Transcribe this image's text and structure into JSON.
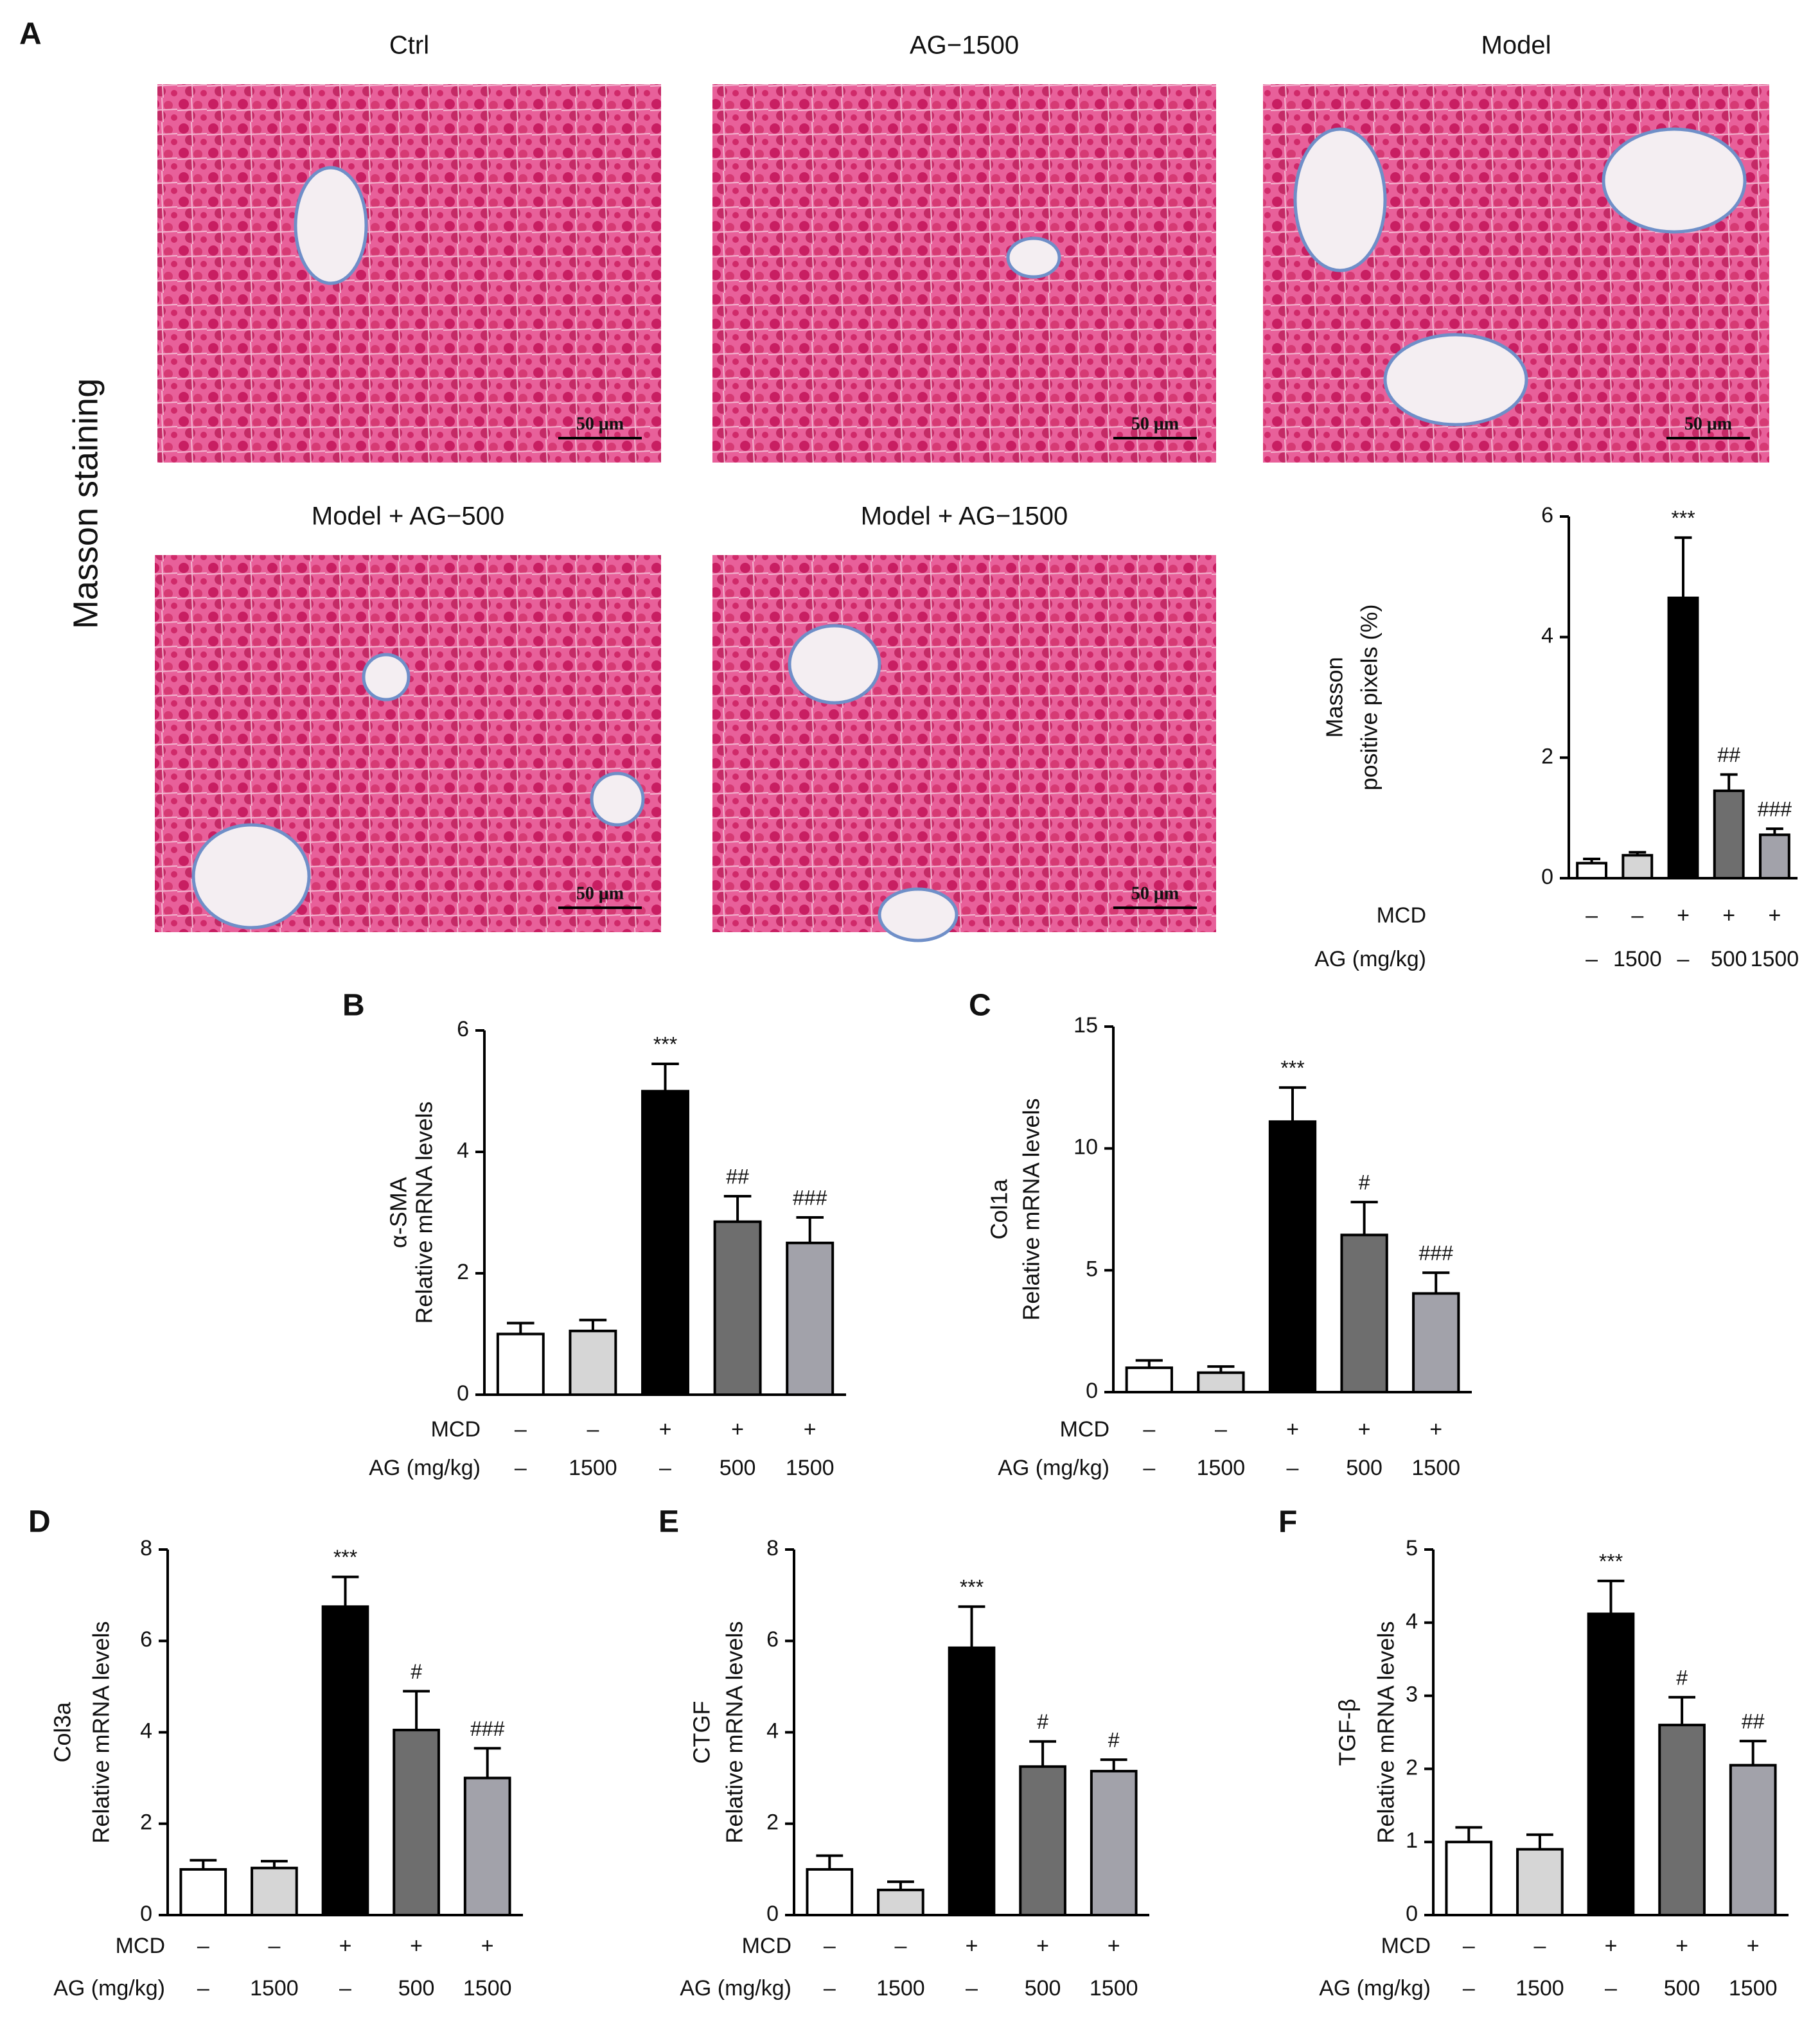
{
  "figure": {
    "panel_label": "A",
    "side_label": "Masson staining",
    "micrographs": [
      {
        "title": "Ctrl",
        "scale_bar": "50 μm"
      },
      {
        "title": "AG−1500",
        "scale_bar": "50 μm"
      },
      {
        "title": "Model",
        "scale_bar": "50 μm"
      },
      {
        "title": "Model + AG−500",
        "scale_bar": "50 μm"
      },
      {
        "title": "Model + AG−1500",
        "scale_bar": "50 μm"
      }
    ]
  },
  "chart_data": [
    {
      "type": "bar",
      "ylabel": [
        "Masson",
        "positive pixels (%)"
      ],
      "values": [
        0.25,
        0.38,
        4.65,
        1.45,
        0.72
      ],
      "errors": [
        0.07,
        0.05,
        1.0,
        0.27,
        0.1
      ],
      "annotations": [
        null,
        null,
        "***",
        "##",
        "###"
      ],
      "colors": [
        "#ffffff",
        "#d6d6d6",
        "#000000",
        "#6e6e6e",
        "#a2a2aa"
      ],
      "ylim": [
        0,
        6
      ],
      "yticks": [
        0,
        2,
        4,
        6
      ],
      "rows": [
        {
          "name": "MCD",
          "labels": [
            "–",
            "–",
            "+",
            "+",
            "+"
          ]
        },
        {
          "name": "AG (mg/kg)",
          "labels": [
            "–",
            "1500",
            "–",
            "500",
            "1500"
          ]
        }
      ]
    },
    {
      "type": "bar",
      "panel": "B",
      "ylabel": [
        "α-SMA",
        "Relative mRNA levels"
      ],
      "values": [
        1.0,
        1.05,
        5.0,
        2.85,
        2.5
      ],
      "errors": [
        0.18,
        0.18,
        0.45,
        0.42,
        0.42
      ],
      "annotations": [
        null,
        null,
        "***",
        "##",
        "###"
      ],
      "colors": [
        "#ffffff",
        "#d6d6d6",
        "#000000",
        "#6e6e6e",
        "#a2a2aa"
      ],
      "ylim": [
        0,
        6
      ],
      "yticks": [
        0,
        2,
        4,
        6
      ],
      "rows": [
        {
          "name": "MCD",
          "labels": [
            "–",
            "–",
            "+",
            "+",
            "+"
          ]
        },
        {
          "name": "AG (mg/kg)",
          "labels": [
            "–",
            "1500",
            "–",
            "500",
            "1500"
          ]
        }
      ]
    },
    {
      "type": "bar",
      "panel": "C",
      "ylabel": [
        "Col1a",
        "Relative mRNA levels"
      ],
      "values": [
        1.0,
        0.8,
        11.1,
        6.45,
        4.05
      ],
      "errors": [
        0.3,
        0.25,
        1.4,
        1.35,
        0.85
      ],
      "annotations": [
        null,
        null,
        "***",
        "#",
        "###"
      ],
      "colors": [
        "#ffffff",
        "#d6d6d6",
        "#000000",
        "#6e6e6e",
        "#a2a2aa"
      ],
      "ylim": [
        0,
        15
      ],
      "yticks": [
        0,
        5,
        10,
        15
      ],
      "rows": [
        {
          "name": "MCD",
          "labels": [
            "–",
            "–",
            "+",
            "+",
            "+"
          ]
        },
        {
          "name": "AG (mg/kg)",
          "labels": [
            "–",
            "1500",
            "–",
            "500",
            "1500"
          ]
        }
      ]
    },
    {
      "type": "bar",
      "panel": "D",
      "ylabel": [
        "Col3a",
        "Relative mRNA levels"
      ],
      "values": [
        1.0,
        1.03,
        6.75,
        4.05,
        3.0
      ],
      "errors": [
        0.2,
        0.15,
        0.65,
        0.85,
        0.65
      ],
      "annotations": [
        null,
        null,
        "***",
        "#",
        "###"
      ],
      "colors": [
        "#ffffff",
        "#d6d6d6",
        "#000000",
        "#6e6e6e",
        "#a2a2aa"
      ],
      "ylim": [
        0,
        8
      ],
      "yticks": [
        0,
        2,
        4,
        6,
        8
      ],
      "rows": [
        {
          "name": "MCD",
          "labels": [
            "–",
            "–",
            "+",
            "+",
            "+"
          ]
        },
        {
          "name": "AG (mg/kg)",
          "labels": [
            "–",
            "1500",
            "–",
            "500",
            "1500"
          ]
        }
      ]
    },
    {
      "type": "bar",
      "panel": "E",
      "ylabel": [
        "CTGF",
        "Relative mRNA levels"
      ],
      "values": [
        1.0,
        0.55,
        5.85,
        3.25,
        3.15
      ],
      "errors": [
        0.3,
        0.18,
        0.9,
        0.55,
        0.25
      ],
      "annotations": [
        null,
        null,
        "***",
        "#",
        "#"
      ],
      "colors": [
        "#ffffff",
        "#d6d6d6",
        "#000000",
        "#6e6e6e",
        "#a2a2aa"
      ],
      "ylim": [
        0,
        8
      ],
      "yticks": [
        0,
        2,
        4,
        6,
        8
      ],
      "rows": [
        {
          "name": "MCD",
          "labels": [
            "–",
            "–",
            "+",
            "+",
            "+"
          ]
        },
        {
          "name": "AG (mg/kg)",
          "labels": [
            "–",
            "1500",
            "–",
            "500",
            "1500"
          ]
        }
      ]
    },
    {
      "type": "bar",
      "panel": "F",
      "ylabel": [
        "TGF-β",
        "Relative mRNA levels"
      ],
      "values": [
        1.0,
        0.9,
        4.12,
        2.6,
        2.05
      ],
      "errors": [
        0.2,
        0.2,
        0.45,
        0.38,
        0.33
      ],
      "annotations": [
        null,
        null,
        "***",
        "#",
        "##"
      ],
      "colors": [
        "#ffffff",
        "#d6d6d6",
        "#000000",
        "#6e6e6e",
        "#a2a2aa"
      ],
      "ylim": [
        0,
        5
      ],
      "yticks": [
        0,
        1,
        2,
        3,
        4,
        5
      ],
      "rows": [
        {
          "name": "MCD",
          "labels": [
            "–",
            "–",
            "+",
            "+",
            "+"
          ]
        },
        {
          "name": "AG (mg/kg)",
          "labels": [
            "–",
            "1500",
            "–",
            "500",
            "1500"
          ]
        }
      ]
    }
  ]
}
